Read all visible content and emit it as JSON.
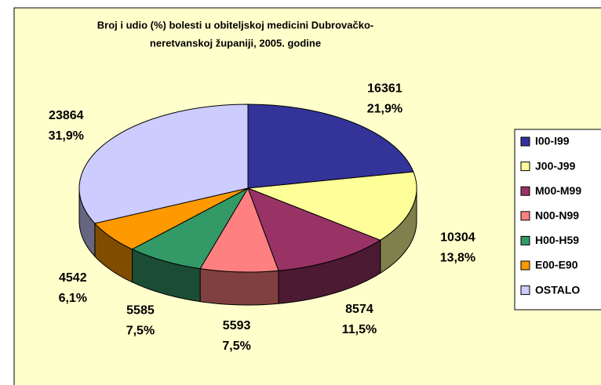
{
  "chart_data": {
    "type": "pie3d",
    "title": [
      "Broj i udio (%) bolesti u obiteljskoj medicini Dubrovačko-",
      "neretvanskoj županiji, 2005. godine"
    ],
    "categories": [
      "I00-I99",
      "J00-J99",
      "M00-M99",
      "N00-N99",
      "H00-H59",
      "E00-E90",
      "OSTALO"
    ],
    "values": [
      16361,
      10304,
      8574,
      5593,
      5585,
      4542,
      23864
    ],
    "percentages": [
      21.9,
      13.8,
      11.5,
      7.5,
      7.5,
      6.1,
      31.9
    ],
    "percentage_labels": [
      "21,9%",
      "13,8%",
      "11,5%",
      "7,5%",
      "7,5%",
      "6,1%",
      "31,9%"
    ],
    "colors": [
      "#333399",
      "#ffff99",
      "#993366",
      "#ff8080",
      "#339966",
      "#ff9900",
      "#ccccff"
    ],
    "legend": "right"
  }
}
